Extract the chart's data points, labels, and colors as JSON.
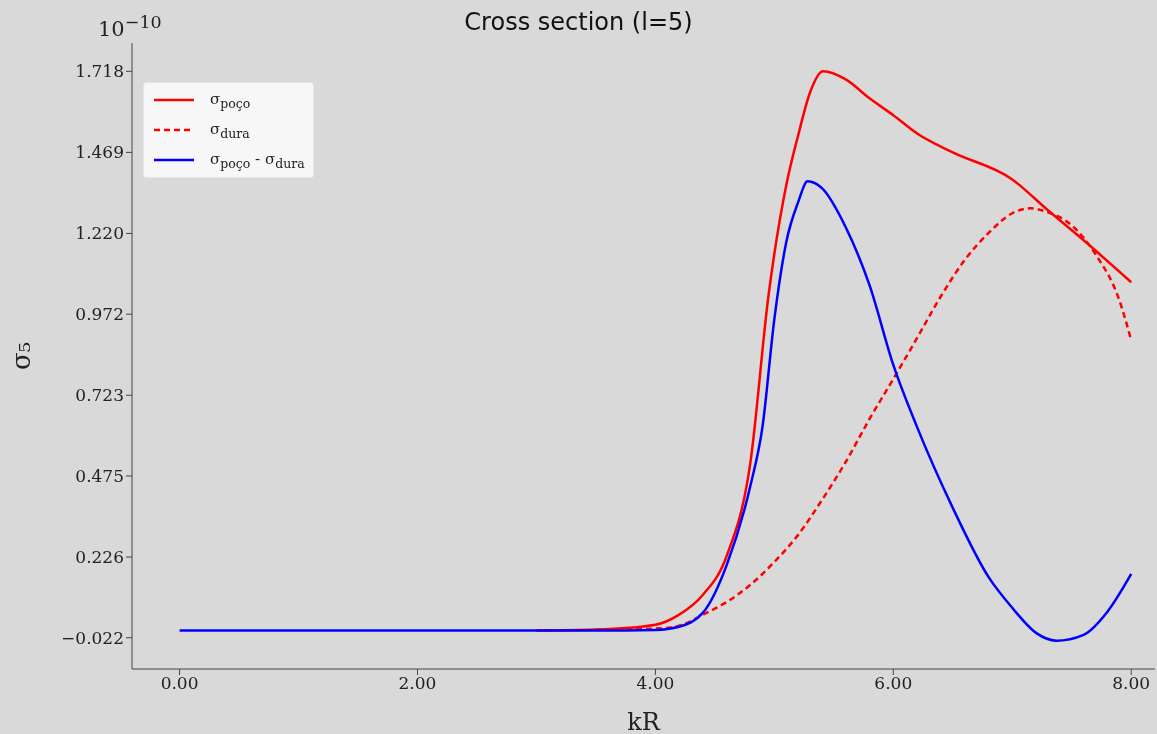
{
  "chart_data": {
    "type": "line",
    "title": "Cross section (l=5)",
    "xlabel": "kR",
    "ylabel": "σ₅",
    "annotations": [
      "10$^{−10}$"
    ],
    "xlim": [
      -0.4,
      8.2
    ],
    "xticks": [
      {
        "value": 0,
        "label": "0.00"
      },
      {
        "value": 2,
        "label": "2.00"
      },
      {
        "value": 4,
        "label": "4.00"
      },
      {
        "value": 6,
        "label": "6.00"
      },
      {
        "value": 8,
        "label": "8.00"
      }
    ],
    "ylim": [
      -0.118,
      1.805
    ],
    "yticks": [
      {
        "value": -0.022,
        "label": "−0.022"
      },
      0.226,
      0.475,
      0.723,
      0.972,
      {
        "value": 1.22,
        "label": "1.220"
      },
      1.469,
      1.718
    ],
    "legend": "top left",
    "series": [
      {
        "name": "σ$_{poço}$",
        "color": "#ff0000",
        "x": [
          3,
          3.5,
          4,
          4.2,
          4.4,
          4.6,
          4.8,
          4.95,
          5.1,
          5.2,
          5.3,
          5.41,
          5.6,
          5.8,
          6,
          6.2,
          6.5,
          7,
          7.3,
          7.6,
          8
        ],
        "values": [
          0,
          0.003,
          0.018,
          0.049,
          0.11,
          0.23,
          0.52,
          1.027,
          1.368,
          1.521,
          1.653,
          1.718,
          1.693,
          1.635,
          1.583,
          1.527,
          1.469,
          1.386,
          1.291,
          1.199,
          1.07
        ]
      },
      {
        "name": "σ$_{dura}$",
        "color": "#ff0000",
        "line_style": "dashed",
        "x": [
          3.5,
          4,
          4.2,
          4.4,
          4.6,
          4.8,
          5,
          5.2,
          5.4,
          5.6,
          5.8,
          6,
          6.2,
          6.4,
          6.6,
          6.8,
          7,
          7.15,
          7.3,
          7.5,
          7.7,
          7.9,
          8
        ],
        "values": [
          0.002,
          0.006,
          0.015,
          0.049,
          0.088,
          0.141,
          0.211,
          0.294,
          0.401,
          0.518,
          0.65,
          0.773,
          0.899,
          1.027,
          1.138,
          1.221,
          1.282,
          1.297,
          1.285,
          1.245,
          1.156,
          1.015,
          0.892
        ]
      },
      {
        "name": "σ$_{poço}$ - σ$_{dura}$",
        "color": "#0000ff",
        "x": [
          0,
          1,
          2,
          3,
          3.5,
          4,
          4.2,
          4.4,
          4.6,
          4.8,
          4.9,
          5,
          5.1,
          5.2,
          5.28,
          5.4,
          5.6,
          5.8,
          6,
          6.2,
          6.5,
          6.8,
          7,
          7.2,
          7.37,
          7.6,
          7.8,
          8
        ],
        "values": [
          0,
          0,
          0,
          0,
          0,
          0.002,
          0.012,
          0.055,
          0.202,
          0.447,
          0.625,
          0.957,
          1.193,
          1.316,
          1.38,
          1.359,
          1.239,
          1.061,
          0.816,
          0.625,
          0.377,
          0.165,
          0.07,
          -0.007,
          -0.031,
          -0.013,
          0.058,
          0.174
        ]
      }
    ]
  }
}
